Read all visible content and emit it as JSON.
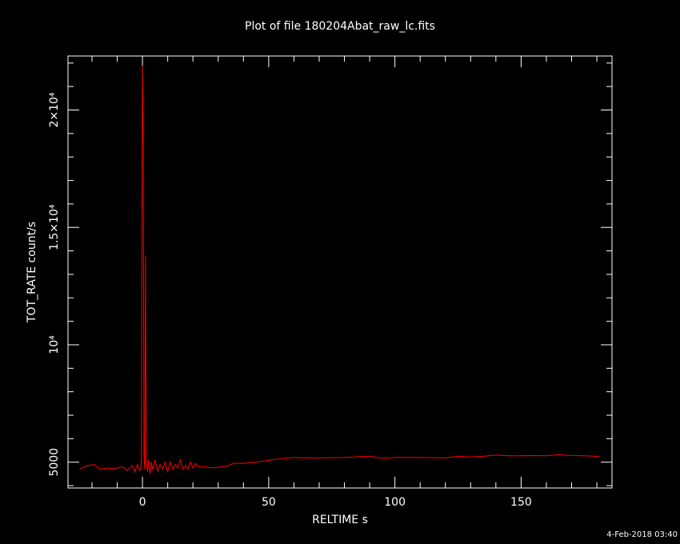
{
  "chart_data": {
    "type": "line",
    "title": "Plot of file 180204Abat_raw_lc.fits",
    "x_label": "RELTIME  s",
    "y_label": "TOT_RATE  count/s",
    "annotation": "4-Feb-2018 03:40",
    "color": "#ff0000",
    "x": [
      -25,
      -22,
      -19,
      -17,
      -14,
      -11,
      -8,
      -6,
      -4,
      -3,
      -2,
      -1,
      -0.5,
      0,
      0.3,
      0.6,
      0.9,
      1.2,
      1.5,
      2,
      2.5,
      3,
      3.5,
      4,
      5,
      6,
      7,
      8,
      9,
      10,
      11,
      12,
      13,
      14,
      15,
      16,
      17,
      18,
      19,
      20,
      21,
      22,
      25,
      28,
      31,
      34,
      36,
      40,
      45,
      50,
      55,
      60,
      65,
      70,
      80,
      90,
      95,
      100,
      110,
      120,
      125,
      130,
      135,
      140,
      145,
      150,
      155,
      160,
      165,
      170,
      175,
      181
    ],
    "values": [
      4700,
      4850,
      4900,
      4700,
      4750,
      4720,
      4800,
      4650,
      4850,
      4600,
      4900,
      4650,
      4800,
      21900,
      18400,
      5300,
      4700,
      13800,
      5100,
      4600,
      5100,
      4500,
      5000,
      4700,
      5100,
      4600,
      4900,
      4700,
      5000,
      4600,
      5000,
      4700,
      4900,
      4750,
      5100,
      4700,
      4850,
      4700,
      5000,
      4750,
      4950,
      4800,
      4800,
      4750,
      4800,
      4850,
      4950,
      4950,
      5000,
      5080,
      5150,
      5200,
      5180,
      5180,
      5200,
      5260,
      5160,
      5200,
      5200,
      5180,
      5250,
      5220,
      5250,
      5300,
      5270,
      5270,
      5280,
      5270,
      5320,
      5280,
      5270,
      5240
    ],
    "xlim": [
      -29.5,
      186
    ],
    "ylim": [
      3900,
      22300
    ],
    "xticks": [
      0,
      50,
      100,
      150
    ],
    "yticks": [
      5000,
      {
        "value": 10000,
        "label": "10⁴"
      },
      {
        "value": 15000,
        "label": "1.5×10⁴"
      },
      {
        "value": 20000,
        "label": "2×10⁴"
      }
    ],
    "xminorticks": [
      -20,
      -10,
      10,
      20,
      30,
      40,
      60,
      70,
      80,
      90,
      110,
      120,
      130,
      140,
      160,
      170,
      180
    ],
    "yminorticks": [
      4000,
      6000,
      7000,
      8000,
      9000,
      11000,
      12000,
      13000,
      14000,
      16000,
      17000,
      18000,
      19000,
      21000,
      22000
    ]
  }
}
